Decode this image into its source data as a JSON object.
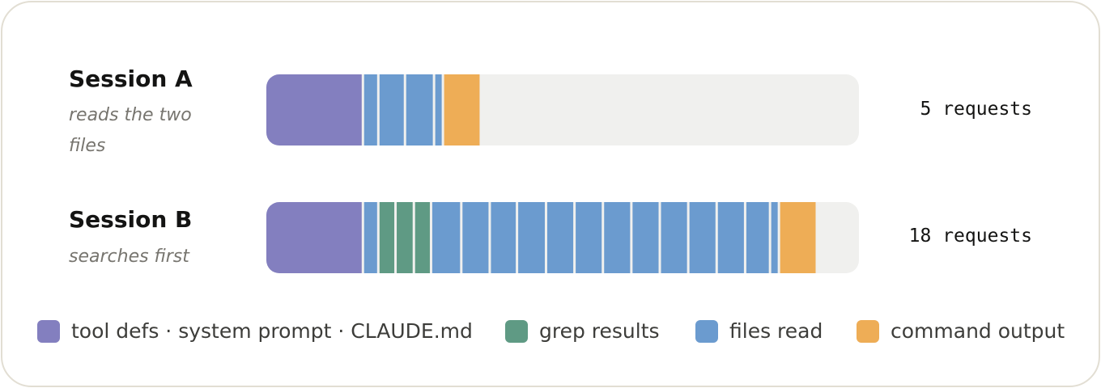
{
  "legend": [
    {
      "label": "tool defs · system prompt · CLAUDE.md",
      "color": "#837fbf"
    },
    {
      "label": "grep results",
      "color": "#5f9a84"
    },
    {
      "label": "files read",
      "color": "#6b9bcf"
    },
    {
      "label": "command output",
      "color": "#eead56"
    }
  ],
  "track_color": "#f0f0ee",
  "sessions": [
    {
      "name": "Session A",
      "description": "reads the two files",
      "requests": "5 requests",
      "segments": [
        {
          "color": "#837fbf",
          "size": 16.5
        },
        {
          "color": "#6b9bcf",
          "size": 2.6
        },
        {
          "color": "#6b9bcf",
          "size": 4.5
        },
        {
          "color": "#6b9bcf",
          "size": 4.9
        },
        {
          "color": "#6b9bcf",
          "size": 1.5
        },
        {
          "color": "#eead56",
          "size": 6.4
        }
      ]
    },
    {
      "name": "Session B",
      "description": "searches first",
      "requests": "18 requests",
      "segments": [
        {
          "color": "#837fbf",
          "size": 16.5
        },
        {
          "color": "#6b9bcf",
          "size": 2.6
        },
        {
          "color": "#5f9a84",
          "size": 2.9
        },
        {
          "color": "#5f9a84",
          "size": 3.1
        },
        {
          "color": "#5f9a84",
          "size": 2.9
        },
        {
          "color": "#6b9bcf",
          "size": 5.1
        },
        {
          "color": "#6b9bcf",
          "size": 4.8
        },
        {
          "color": "#6b9bcf",
          "size": 4.6
        },
        {
          "color": "#6b9bcf",
          "size": 4.9
        },
        {
          "color": "#6b9bcf",
          "size": 4.8
        },
        {
          "color": "#6b9bcf",
          "size": 4.8
        },
        {
          "color": "#6b9bcf",
          "size": 4.8
        },
        {
          "color": "#6b9bcf",
          "size": 4.8
        },
        {
          "color": "#6b9bcf",
          "size": 4.8
        },
        {
          "color": "#6b9bcf",
          "size": 4.8
        },
        {
          "color": "#6b9bcf",
          "size": 4.8
        },
        {
          "color": "#6b9bcf",
          "size": 4.2
        },
        {
          "color": "#6b9bcf",
          "size": 1.5
        },
        {
          "color": "#eead56",
          "size": 6.4
        }
      ]
    }
  ]
}
